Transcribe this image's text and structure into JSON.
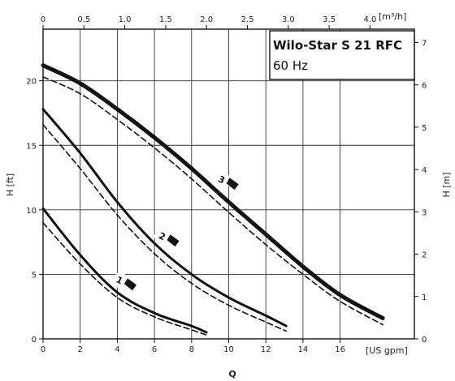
{
  "chart_data": {
    "type": "line",
    "title": "Wilo-Star S 21 RFC",
    "subtitle": "60 Hz",
    "xlabel": "Q",
    "x_unit_bottom": "[US gpm]",
    "x_unit_top": "[m³/h]",
    "ylabel_left": "H [ft]",
    "ylabel_right": "H [m]",
    "xlim": [
      0,
      20
    ],
    "ylim": [
      0,
      24
    ],
    "grid": true,
    "x_ticks_bottom": [
      "0",
      "2",
      "4",
      "6",
      "8",
      "10",
      "12",
      "14",
      "16"
    ],
    "x_ticks_bottom_values": [
      0,
      2,
      4,
      6,
      8,
      10,
      12,
      14,
      16
    ],
    "x_ticks_top": [
      "0",
      "0.5",
      "1.0",
      "1.5",
      "2.0",
      "2.5",
      "3.0",
      "3.5",
      "4.0"
    ],
    "x_ticks_top_values_m3h": [
      0,
      0.5,
      1.0,
      1.5,
      2.0,
      2.5,
      3.0,
      3.5,
      4.0
    ],
    "y_ticks_left": [
      "0",
      "5",
      "10",
      "15",
      "20"
    ],
    "y_ticks_left_values": [
      0,
      5,
      10,
      15,
      20
    ],
    "y_ticks_right": [
      "0",
      "1",
      "2",
      "3",
      "4",
      "5",
      "6",
      "7"
    ],
    "y_ticks_right_values_m": [
      0,
      1,
      2,
      3,
      4,
      5,
      6,
      7
    ],
    "series": [
      {
        "name": "3",
        "style": "solid-thick",
        "x": [
          0,
          2,
          4,
          6,
          8,
          10,
          12,
          14,
          16,
          18.3
        ],
        "y": [
          21.2,
          19.8,
          17.8,
          15.6,
          13.2,
          10.6,
          8.1,
          5.6,
          3.4,
          1.6
        ]
      },
      {
        "name": "3",
        "style": "dashed",
        "x": [
          0,
          2,
          4,
          6,
          8,
          10,
          12,
          14,
          16,
          18.3
        ],
        "y": [
          20.3,
          19.0,
          17.0,
          14.8,
          12.4,
          9.8,
          7.3,
          5.0,
          2.9,
          1.1
        ]
      },
      {
        "name": "2",
        "style": "solid",
        "x": [
          0,
          2,
          4,
          6,
          8,
          10,
          12,
          13.1
        ],
        "y": [
          17.8,
          14.4,
          10.6,
          7.4,
          5.0,
          3.2,
          1.8,
          1.0
        ]
      },
      {
        "name": "2",
        "style": "dashed",
        "x": [
          0,
          2,
          4,
          6,
          8,
          10,
          12,
          13.1
        ],
        "y": [
          16.6,
          13.2,
          9.6,
          6.6,
          4.3,
          2.6,
          1.3,
          0.6
        ]
      },
      {
        "name": "1",
        "style": "solid",
        "x": [
          0,
          2,
          4,
          6,
          8,
          8.8
        ],
        "y": [
          10.1,
          6.5,
          3.6,
          2.0,
          1.0,
          0.5
        ]
      },
      {
        "name": "1",
        "style": "dashed",
        "x": [
          0,
          2,
          4,
          6,
          8,
          8.8
        ],
        "y": [
          9.0,
          5.8,
          3.2,
          1.7,
          0.7,
          0.3
        ]
      }
    ],
    "annotations": [
      {
        "text": "1",
        "at_x": 4.2,
        "at_y": 4.5
      },
      {
        "text": "2",
        "at_x": 6.5,
        "at_y": 7.9
      },
      {
        "text": "3",
        "at_x": 9.7,
        "at_y": 12.3
      }
    ]
  }
}
